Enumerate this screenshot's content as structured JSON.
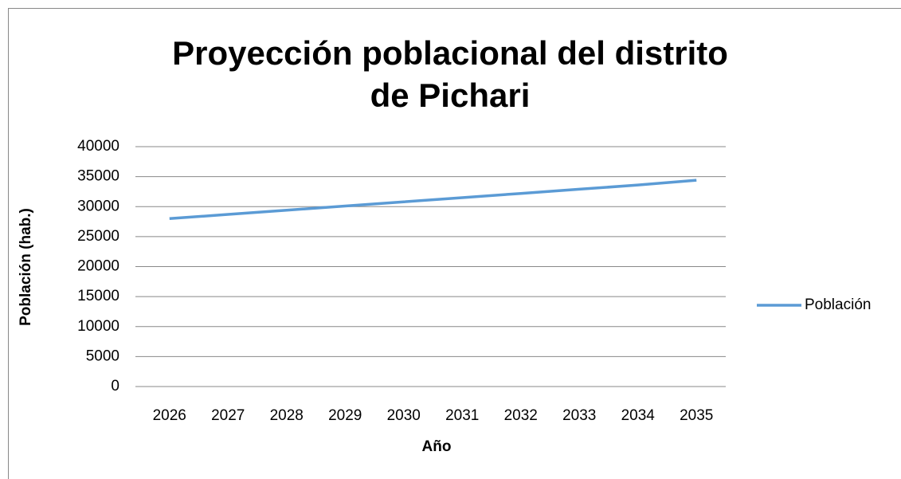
{
  "chart_data": {
    "type": "line",
    "title": "Proyección poblacional del distrito de Pichari",
    "x_label": "Año",
    "y_label": "Población (hab.)",
    "categories": [
      "2026",
      "2027",
      "2028",
      "2029",
      "2030",
      "2031",
      "2032",
      "2033",
      "2034",
      "2035"
    ],
    "series": [
      {
        "name": "Población",
        "color": "#5b9bd5",
        "values": [
          28000,
          28700,
          29400,
          30100,
          30800,
          31500,
          32200,
          32900,
          33600,
          34400
        ]
      }
    ],
    "ylim": [
      0,
      40000
    ],
    "yticks": [
      0,
      5000,
      10000,
      15000,
      20000,
      25000,
      30000,
      35000,
      40000
    ],
    "grid": true,
    "legend": "right"
  }
}
